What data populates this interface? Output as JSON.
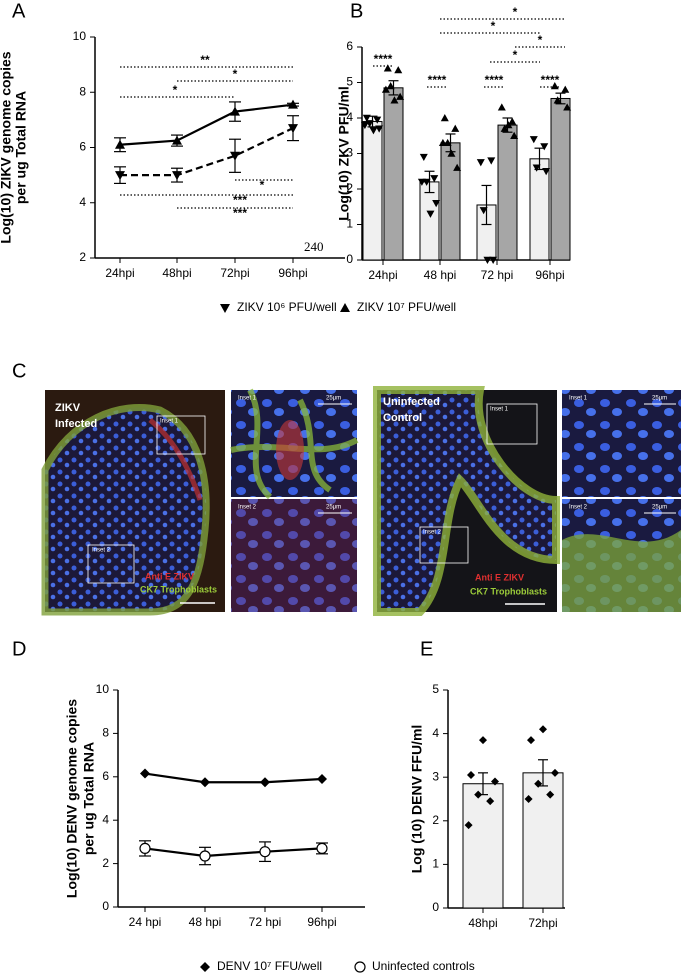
{
  "chart_data": [
    {
      "panel": "A",
      "type": "line",
      "ylabel": [
        "Log(10) ZIKV genome copies",
        "per ug Total RNA"
      ],
      "categories": [
        "24hpi",
        "48hpi",
        "72hpi",
        "96hpi"
      ],
      "ylim": [
        2,
        10
      ],
      "yticks": [
        2,
        4,
        6,
        8,
        10
      ],
      "series": [
        {
          "name": "ZIKV 10⁶ PFU/well",
          "color": "#000000",
          "marker": "down",
          "dashed": true,
          "values": [
            5.0,
            5.0,
            5.7,
            6.7
          ],
          "errors": [
            0.3,
            0.25,
            0.6,
            0.45
          ]
        },
        {
          "name": "ZIKV 10⁷ PFU/well",
          "color": "#000000",
          "marker": "up",
          "dashed": false,
          "values": [
            6.1,
            6.25,
            7.3,
            7.55
          ],
          "errors": [
            0.25,
            0.2,
            0.35,
            0.05
          ]
        }
      ],
      "annotations": [
        "**",
        "*",
        "*",
        "*",
        "***",
        "***"
      ],
      "overlay_text": "240"
    },
    {
      "panel": "B",
      "type": "bar",
      "ylabel": "Log(10) ZKV PFU/ml",
      "categories": [
        "24hpi",
        "48 hpi",
        "72 hpi",
        "96hpi"
      ],
      "ylim": [
        0,
        6
      ],
      "yticks": [
        0,
        1,
        2,
        3,
        4,
        5,
        6
      ],
      "series": [
        {
          "color": "#f0f0f0",
          "marker": "down",
          "values": [
            3.9,
            2.2,
            1.55,
            2.85
          ],
          "errors": [
            0.15,
            0.3,
            0.55,
            0.3
          ],
          "points": [
            [
              4.0,
              3.95,
              3.85,
              3.7,
              3.65,
              3.8
            ],
            [
              2.9,
              2.3,
              2.2,
              1.6,
              1.3,
              2.2
            ],
            [
              2.75,
              2.8,
              1.4,
              0,
              0
            ],
            [
              3.4,
              3.2,
              2.6,
              2.5
            ]
          ]
        },
        {
          "color": "#a6a6a6",
          "marker": "up",
          "values": [
            4.85,
            3.3,
            3.8,
            4.55
          ],
          "errors": [
            0.2,
            0.25,
            0.2,
            0.15
          ],
          "points": [
            [
              5.4,
              5.35,
              4.9,
              4.6,
              4.5,
              4.8
            ],
            [
              4.0,
              3.7,
              3.3,
              2.6,
              3.0,
              3.3
            ],
            [
              4.3,
              3.9,
              3.7,
              3.5,
              3.8
            ],
            [
              4.9,
              4.8,
              4.5,
              4.3
            ]
          ]
        }
      ],
      "annotations": [
        "*",
        "*",
        "*",
        "****",
        "*",
        "****",
        "****",
        "****"
      ]
    },
    {
      "panel": "D",
      "type": "line",
      "ylabel": [
        "Log(10) DENV genome copies",
        "per ug Total RNA"
      ],
      "categories": [
        "24 hpi",
        "48 hpi",
        "72 hpi",
        "96hpi"
      ],
      "ylim": [
        0,
        10
      ],
      "yticks": [
        0,
        2,
        4,
        6,
        8,
        10
      ],
      "series": [
        {
          "name": "DENV 10⁷ FFU/well",
          "color": "#000000",
          "marker": "diamond",
          "dashed": false,
          "values": [
            6.15,
            5.75,
            5.75,
            5.9
          ]
        },
        {
          "name": "Uninfected controls",
          "color": "#000000",
          "marker": "circle",
          "dashed": false,
          "values": [
            2.7,
            2.35,
            2.55,
            2.7
          ],
          "errors": [
            0.35,
            0.4,
            0.45,
            0.25
          ]
        }
      ]
    },
    {
      "panel": "E",
      "type": "bar",
      "ylabel": "Log (10) DENV FFU/ml",
      "categories": [
        "48hpi",
        "72hpi"
      ],
      "ylim": [
        0,
        5
      ],
      "yticks": [
        0,
        1,
        2,
        3,
        4,
        5
      ],
      "series": [
        {
          "color": "#f0f0f0",
          "marker": "diamond",
          "values": [
            2.85,
            3.1
          ],
          "errors": [
            0.25,
            0.3
          ],
          "points": [
            [
              3.85,
              3.05,
              2.9,
              2.6,
              2.45,
              1.9
            ],
            [
              4.1,
              3.85,
              3.1,
              2.85,
              2.6,
              2.5
            ]
          ]
        }
      ]
    }
  ],
  "panel_c": {
    "letter": "C",
    "left": {
      "title": [
        "ZIKV",
        "Infected"
      ],
      "box_labels": [
        "Inset 1",
        "Inset 2"
      ],
      "stains": [
        "Anti E ZIKV",
        "CK7 Trophoblasts"
      ],
      "insets": [
        {
          "label": "Inset 1",
          "scale": "25μm"
        },
        {
          "label": "Inset 2",
          "scale": "25μm"
        }
      ]
    },
    "right": {
      "title": [
        "Uninfected",
        "Control"
      ],
      "box_labels": [
        "Inset 1",
        "Inset 2"
      ],
      "stains": [
        "Anti E ZIKV",
        "CK7 Trophoblasts"
      ],
      "insets": [
        {
          "label": "Inset 1",
          "scale": "25μm"
        },
        {
          "label": "Inset 2",
          "scale": "25μm"
        }
      ]
    }
  }
}
